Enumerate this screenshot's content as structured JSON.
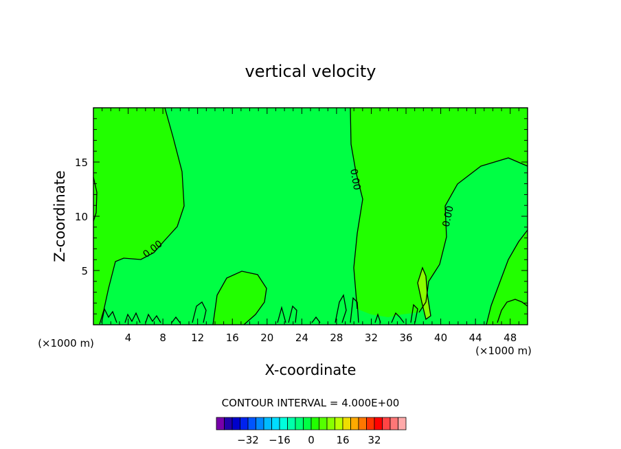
{
  "chart_data": {
    "type": "contour",
    "title": "vertical velocity",
    "xlabel": "X-coordinate",
    "ylabel": "Z-coordinate",
    "x_unit_label": "(×1000 m)",
    "y_unit_label": "(×1000 m)",
    "xlim": [
      0,
      50
    ],
    "ylim": [
      0,
      20
    ],
    "x_ticks": [
      4,
      8,
      12,
      16,
      20,
      24,
      28,
      32,
      36,
      40,
      44,
      48
    ],
    "y_ticks": [
      5,
      10,
      15
    ],
    "contour_interval_label": "CONTOUR INTERVAL = 4.000E+00",
    "contour_labels": [
      {
        "text": "0.00",
        "x": 6.8,
        "y": 7.0
      },
      {
        "text": "0.00",
        "x": 30.2,
        "y": 13.4
      },
      {
        "text": "0.00",
        "x": 40.8,
        "y": 10.0
      }
    ],
    "colorbar": {
      "tick_labels": [
        "−32",
        "−16",
        "0",
        "16",
        "32"
      ],
      "tick_values": [
        -32,
        -16,
        0,
        16,
        32
      ],
      "colors": [
        "#7700aa",
        "#2200aa",
        "#0000cc",
        "#0022ee",
        "#0055ff",
        "#0088ff",
        "#00bbff",
        "#00ddff",
        "#00ffdd",
        "#00ffaa",
        "#00ff77",
        "#00ff44",
        "#22ff00",
        "#55ff00",
        "#88ff00",
        "#bbff00",
        "#eedd00",
        "#ffaa00",
        "#ff7700",
        "#ff3300",
        "#ff0000",
        "#ff4444",
        "#ff7777",
        "#ffaaaa"
      ]
    },
    "field_colors": {
      "weak_negative": "#00ff44",
      "weak_positive": "#22ff00",
      "positive": "#88ff00"
    }
  }
}
